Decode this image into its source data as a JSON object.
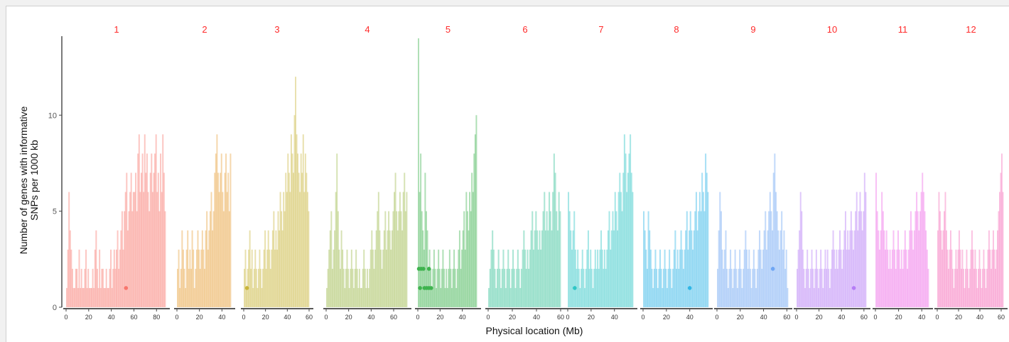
{
  "chart_data": {
    "type": "area",
    "xlabel": "Physical location (Mb)",
    "ylabel_lines": [
      "Number of genes with informative",
      "SNPs per 1000 kb"
    ],
    "ylim": [
      0,
      14
    ],
    "y_ticks": [
      0,
      5,
      10
    ],
    "grid": false,
    "panels": [
      {
        "label": "1",
        "color": "#F8766D",
        "xmax": 88,
        "ticks": [
          0,
          20,
          40,
          60,
          80
        ],
        "values": [
          1,
          3,
          6,
          4,
          3,
          2,
          1,
          1,
          2,
          2,
          1,
          3,
          1,
          2,
          1,
          1,
          2,
          3,
          1,
          2,
          1,
          1,
          1,
          2,
          1,
          3,
          4,
          2,
          1,
          3,
          1,
          2,
          2,
          1,
          1,
          2,
          1,
          1,
          2,
          3,
          1,
          2,
          3,
          2,
          3,
          4,
          2,
          3,
          4,
          5,
          3,
          5,
          6,
          7,
          4,
          5,
          6,
          7,
          5,
          6,
          6,
          7,
          5,
          8,
          9,
          6,
          7,
          8,
          6,
          9,
          7,
          8,
          6,
          5,
          7,
          8,
          6,
          7,
          8,
          9,
          6,
          7,
          5,
          8,
          6,
          9,
          7,
          5
        ],
        "points": [
          [
            53,
            1
          ]
        ]
      },
      {
        "label": "2",
        "color": "#E6A03A",
        "xmax": 48,
        "ticks": [
          0,
          20,
          40
        ],
        "values": [
          2,
          3,
          1,
          2,
          4,
          3,
          2,
          1,
          3,
          4,
          2,
          3,
          2,
          4,
          3,
          1,
          2,
          3,
          4,
          3,
          2,
          3,
          4,
          3,
          2,
          4,
          5,
          3,
          4,
          5,
          6,
          4,
          5,
          7,
          8,
          9,
          7,
          6,
          7,
          8,
          6,
          5,
          7,
          8,
          6,
          7,
          5,
          8
        ],
        "points": []
      },
      {
        "label": "3",
        "color": "#C9B53A",
        "xmax": 60,
        "ticks": [
          0,
          20,
          40,
          60
        ],
        "values": [
          2,
          3,
          1,
          2,
          3,
          4,
          2,
          3,
          1,
          2,
          3,
          2,
          1,
          2,
          3,
          2,
          1,
          2,
          3,
          4,
          2,
          3,
          4,
          3,
          2,
          3,
          4,
          5,
          3,
          4,
          3,
          5,
          4,
          6,
          5,
          4,
          6,
          5,
          7,
          6,
          8,
          7,
          6,
          9,
          8,
          7,
          10,
          12,
          9,
          8,
          7,
          6,
          8,
          7,
          9,
          6,
          8,
          7,
          6,
          5
        ],
        "points": [
          [
            3,
            1
          ]
        ]
      },
      {
        "label": "4",
        "color": "#9DBA4C",
        "xmax": 72,
        "ticks": [
          0,
          20,
          40,
          60
        ],
        "values": [
          1,
          2,
          3,
          4,
          5,
          2,
          3,
          4,
          6,
          8,
          5,
          3,
          2,
          4,
          3,
          2,
          1,
          2,
          3,
          2,
          1,
          2,
          3,
          2,
          1,
          2,
          3,
          2,
          1,
          2,
          1,
          1,
          2,
          3,
          2,
          1,
          2,
          1,
          2,
          3,
          4,
          3,
          2,
          3,
          4,
          5,
          6,
          4,
          3,
          2,
          3,
          4,
          5,
          3,
          4,
          5,
          4,
          3,
          4,
          5,
          6,
          7,
          5,
          4,
          5,
          6,
          5,
          4,
          6,
          7,
          5,
          6
        ],
        "points": []
      },
      {
        "label": "5",
        "color": "#3EB34E",
        "xmax": 53,
        "ticks": [
          0,
          20,
          40
        ],
        "values": [
          14,
          6,
          8,
          5,
          4,
          3,
          7,
          5,
          4,
          2,
          3,
          2,
          1,
          2,
          3,
          2,
          1,
          2,
          3,
          2,
          1,
          2,
          3,
          2,
          1,
          2,
          1,
          2,
          3,
          2,
          1,
          2,
          3,
          2,
          1,
          2,
          3,
          4,
          2,
          3,
          4,
          5,
          3,
          6,
          5,
          4,
          6,
          5,
          7,
          6,
          8,
          9,
          10
        ],
        "points": [
          [
            1,
            2
          ],
          [
            3,
            2
          ],
          [
            5,
            2
          ],
          [
            10,
            2
          ],
          [
            2,
            1
          ],
          [
            6,
            1
          ],
          [
            8,
            1
          ],
          [
            10,
            1
          ],
          [
            12,
            1
          ]
        ]
      },
      {
        "label": "6",
        "color": "#3CC49A",
        "xmax": 60,
        "ticks": [
          0,
          20,
          40,
          60
        ],
        "values": [
          1,
          2,
          3,
          4,
          3,
          2,
          1,
          2,
          3,
          2,
          1,
          2,
          3,
          2,
          1,
          2,
          3,
          2,
          1,
          2,
          3,
          2,
          1,
          2,
          3,
          2,
          1,
          2,
          3,
          4,
          3,
          2,
          3,
          2,
          3,
          4,
          5,
          3,
          4,
          5,
          4,
          3,
          4,
          3,
          4,
          5,
          6,
          4,
          5,
          4,
          6,
          5,
          4,
          6,
          8,
          7,
          5,
          4,
          6,
          5
        ],
        "points": []
      },
      {
        "label": "7",
        "color": "#2FC6C6",
        "xmax": 56,
        "ticks": [
          0,
          20,
          40
        ],
        "values": [
          6,
          5,
          4,
          3,
          4,
          5,
          3,
          2,
          3,
          2,
          1,
          2,
          3,
          2,
          1,
          2,
          3,
          4,
          2,
          3,
          2,
          1,
          2,
          3,
          2,
          3,
          2,
          3,
          4,
          3,
          2,
          3,
          2,
          3,
          4,
          5,
          3,
          4,
          5,
          4,
          6,
          5,
          4,
          6,
          7,
          6,
          5,
          7,
          9,
          8,
          6,
          7,
          8,
          9,
          7,
          6
        ],
        "points": [
          [
            6,
            1
          ]
        ]
      },
      {
        "label": "8",
        "color": "#2FB6E6",
        "xmax": 56,
        "ticks": [
          0,
          20,
          40
        ],
        "values": [
          5,
          4,
          3,
          2,
          5,
          4,
          3,
          2,
          1,
          2,
          3,
          2,
          1,
          2,
          3,
          2,
          1,
          2,
          3,
          2,
          1,
          2,
          3,
          2,
          1,
          2,
          3,
          4,
          2,
          3,
          2,
          3,
          4,
          3,
          2,
          3,
          4,
          5,
          3,
          4,
          5,
          4,
          3,
          4,
          5,
          6,
          4,
          5,
          6,
          5,
          7,
          6,
          5,
          8,
          7,
          6
        ],
        "points": [
          [
            40,
            1
          ]
        ]
      },
      {
        "label": "9",
        "color": "#6FA6F4",
        "xmax": 61,
        "ticks": [
          0,
          20,
          40,
          60
        ],
        "values": [
          2,
          4,
          6,
          5,
          3,
          2,
          3,
          4,
          2,
          1,
          2,
          3,
          2,
          1,
          2,
          3,
          2,
          1,
          2,
          3,
          2,
          1,
          2,
          3,
          4,
          3,
          2,
          3,
          2,
          1,
          2,
          3,
          2,
          1,
          2,
          3,
          4,
          3,
          2,
          3,
          4,
          5,
          3,
          4,
          5,
          6,
          5,
          4,
          7,
          8,
          6,
          5,
          4,
          3,
          4,
          5,
          3,
          4,
          2,
          3,
          1
        ],
        "points": [
          [
            48,
            2
          ]
        ]
      },
      {
        "label": "10",
        "color": "#B57CF6",
        "xmax": 62,
        "ticks": [
          0,
          20,
          40,
          60
        ],
        "values": [
          2,
          3,
          4,
          6,
          5,
          3,
          2,
          1,
          2,
          3,
          2,
          1,
          2,
          3,
          2,
          1,
          2,
          3,
          2,
          1,
          2,
          3,
          2,
          1,
          2,
          3,
          2,
          3,
          2,
          1,
          2,
          3,
          4,
          3,
          2,
          3,
          2,
          3,
          4,
          3,
          2,
          3,
          4,
          5,
          3,
          4,
          3,
          4,
          5,
          4,
          3,
          4,
          5,
          6,
          4,
          5,
          6,
          5,
          4,
          5,
          7,
          6
        ],
        "points": [
          [
            51,
            1
          ]
        ]
      },
      {
        "label": "11",
        "color": "#EE6BE6",
        "xmax": 46,
        "ticks": [
          0,
          20,
          40
        ],
        "values": [
          7,
          5,
          4,
          3,
          4,
          6,
          5,
          4,
          3,
          4,
          3,
          2,
          3,
          2,
          3,
          4,
          3,
          2,
          3,
          4,
          3,
          2,
          3,
          2,
          3,
          4,
          3,
          2,
          3,
          4,
          5,
          4,
          3,
          4,
          5,
          6,
          5,
          4,
          5,
          6,
          7,
          6,
          5,
          4,
          3,
          2
        ],
        "points": []
      },
      {
        "label": "12",
        "color": "#F56BB8",
        "xmax": 62,
        "ticks": [
          0,
          20,
          40,
          60
        ],
        "values": [
          4,
          6,
          5,
          4,
          3,
          4,
          5,
          6,
          4,
          3,
          2,
          3,
          4,
          3,
          2,
          1,
          2,
          3,
          2,
          3,
          4,
          3,
          2,
          3,
          2,
          1,
          2,
          3,
          2,
          1,
          2,
          3,
          4,
          3,
          2,
          3,
          2,
          1,
          2,
          3,
          2,
          1,
          2,
          3,
          2,
          1,
          2,
          3,
          4,
          3,
          2,
          3,
          4,
          3,
          2,
          3,
          4,
          5,
          6,
          7,
          8,
          6
        ],
        "points": []
      }
    ]
  }
}
